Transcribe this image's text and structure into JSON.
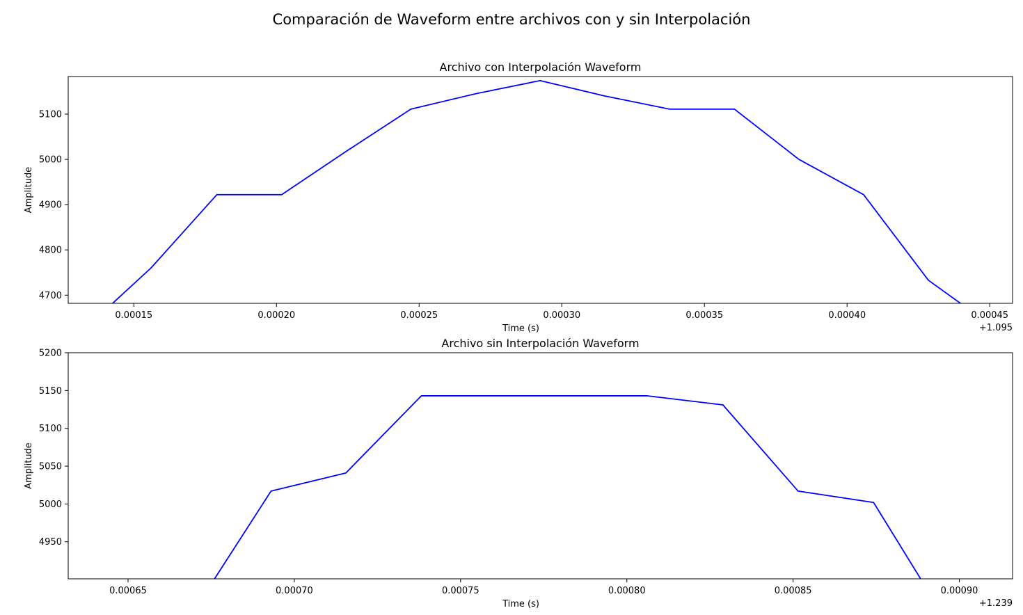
{
  "figure": {
    "suptitle": "Comparación de Waveform entre archivos con y sin Interpolación"
  },
  "chart_data": [
    {
      "type": "line",
      "title": "Archivo con Interpolación Waveform",
      "xlabel": "Time (s)",
      "ylabel": "Amplitude",
      "x_offset_label": "+1.095",
      "xlim": [
        0.000127,
        0.000458
      ],
      "ylim": [
        4682,
        5183
      ],
      "x_ticks": [
        0.00015,
        0.0002,
        0.00025,
        0.0003,
        0.00035,
        0.0004,
        0.00045
      ],
      "x_tick_labels": [
        "0.00015",
        "0.00020",
        "0.00025",
        "0.00030",
        "0.00035",
        "0.00040",
        "0.00045"
      ],
      "y_ticks": [
        4700,
        4800,
        4900,
        5000,
        5100
      ],
      "y_tick_labels": [
        "4700",
        "4800",
        "4900",
        "5000",
        "5100"
      ],
      "grid": false,
      "series": [
        {
          "color": "#0000ff",
          "x": [
            0.0001336,
            0.000156,
            0.0001791,
            0.0002018,
            0.0002245,
            0.0002471,
            0.0002698,
            0.0002924,
            0.0003151,
            0.0003378,
            0.0003605,
            0.0003831,
            0.0004058,
            0.0004285,
            0.0004512
          ],
          "y": [
            4630,
            4760,
            4922,
            4922,
            5018,
            5111,
            5145,
            5174,
            5140,
            5111,
            5111,
            5000,
            4922,
            4733,
            4630
          ]
        }
      ]
    },
    {
      "type": "line",
      "title": "Archivo sin Interpolación Waveform",
      "xlabel": "Time (s)",
      "ylabel": "Amplitude",
      "x_offset_label": "+1.239",
      "xlim": [
        0.000632,
        0.000916
      ],
      "ylim": [
        4901,
        5200
      ],
      "x_ticks": [
        0.00065,
        0.0007,
        0.00075,
        0.0008,
        0.00085,
        0.0009
      ],
      "x_tick_labels": [
        "0.00065",
        "0.00070",
        "0.00075",
        "0.00080",
        "0.00085",
        "0.00090"
      ],
      "y_ticks": [
        4950,
        5000,
        5050,
        5100,
        5150,
        5200
      ],
      "y_tick_labels": [
        "4950",
        "5000",
        "5050",
        "5100",
        "5150",
        "5200"
      ],
      "grid": false,
      "series": [
        {
          "color": "#0000ff",
          "x": [
            0.00067,
            0.000693,
            0.0007155,
            0.0007382,
            0.0007608,
            0.0007835,
            0.0008062,
            0.0008289,
            0.0008515,
            0.0008742,
            0.0008969
          ],
          "y": [
            4860,
            5017,
            5041,
            5143,
            5143,
            5143,
            5143,
            5131,
            5017,
            5002,
            4840
          ]
        }
      ]
    }
  ]
}
